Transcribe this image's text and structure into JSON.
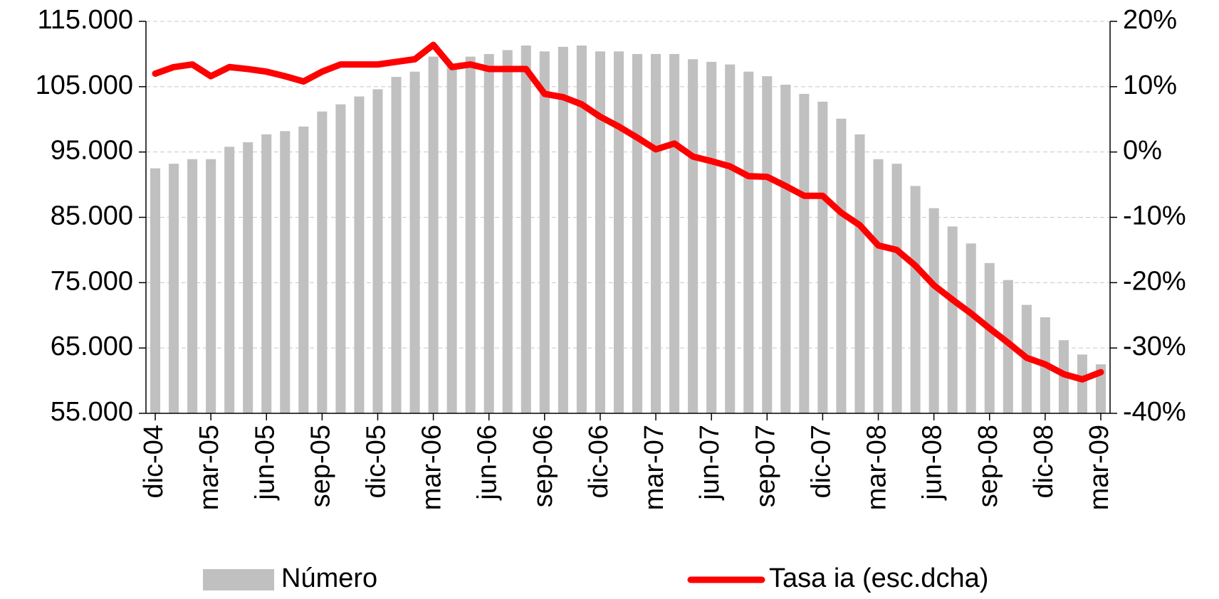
{
  "chart_data": {
    "type": "bar_line",
    "categories": [
      "dic-04",
      null,
      null,
      "mar-05",
      null,
      null,
      "jun-05",
      null,
      null,
      "sep-05",
      null,
      null,
      "dic-05",
      null,
      null,
      "mar-06",
      null,
      null,
      "jun-06",
      null,
      null,
      "sep-06",
      null,
      null,
      "dic-06",
      null,
      null,
      "mar-07",
      null,
      null,
      "jun-07",
      null,
      null,
      "sep-07",
      null,
      null,
      "dic-07",
      null,
      null,
      "mar-08",
      null,
      null,
      "jun-08",
      null,
      null,
      "sep-08",
      null,
      null,
      "dic-08",
      null,
      null,
      "mar-09"
    ],
    "series": [
      {
        "name": "Número",
        "type": "bar",
        "color": "#c0c0c0",
        "values": [
          92500,
          93200,
          93900,
          93900,
          95800,
          96500,
          97700,
          98200,
          98900,
          101200,
          102300,
          103500,
          104600,
          106500,
          107300,
          109600,
          108500,
          109600,
          110000,
          110600,
          111300,
          110400,
          111100,
          111300,
          110400,
          110400,
          110000,
          110000,
          110000,
          109200,
          108800,
          108400,
          107300,
          106600,
          105300,
          103900,
          102700,
          100100,
          97700,
          93900,
          93200,
          89800,
          86400,
          83600,
          81000,
          78000,
          75400,
          71600,
          69700,
          66200,
          64000,
          62500
        ]
      },
      {
        "name": "Tasa ia (esc.dcha)",
        "type": "line",
        "axis": "y2",
        "color": "#ff0000",
        "values": [
          12,
          13,
          13.4,
          11.6,
          13,
          12.7,
          12.3,
          11.6,
          10.8,
          12.3,
          13.4,
          13.4,
          13.4,
          13.8,
          14.2,
          16.4,
          13,
          13.4,
          12.7,
          12.7,
          12.7,
          8.9,
          8.4,
          7.3,
          5.4,
          3.9,
          2.2,
          0.4,
          1.3,
          -0.7,
          -1.4,
          -2.2,
          -3.7,
          -3.8,
          -5.2,
          -6.7,
          -6.7,
          -9.3,
          -11.2,
          -14.3,
          -15,
          -17.4,
          -20.4,
          -22.6,
          -24.7,
          -27,
          -29.2,
          -31.5,
          -32.5,
          -34,
          -34.8,
          -33.7
        ]
      }
    ],
    "ylim": [
      55000,
      115000
    ],
    "yticks": [
      {
        "value": 55000,
        "label": "55.000"
      },
      {
        "value": 65000,
        "label": "65.000"
      },
      {
        "value": 75000,
        "label": "75.000"
      },
      {
        "value": 85000,
        "label": "85.000"
      },
      {
        "value": 95000,
        "label": "95.000"
      },
      {
        "value": 105000,
        "label": "105.000"
      },
      {
        "value": 115000,
        "label": "115.000"
      }
    ],
    "y2lim": [
      -40,
      20
    ],
    "y2ticks": [
      {
        "value": -40,
        "label": "-40%"
      },
      {
        "value": -30,
        "label": "-30%"
      },
      {
        "value": -20,
        "label": "-20%"
      },
      {
        "value": -10,
        "label": "-10%"
      },
      {
        "value": 0,
        "label": "0%"
      },
      {
        "value": 10,
        "label": "10%"
      },
      {
        "value": 20,
        "label": "20%"
      }
    ],
    "grid": true,
    "legend": "bottom"
  }
}
